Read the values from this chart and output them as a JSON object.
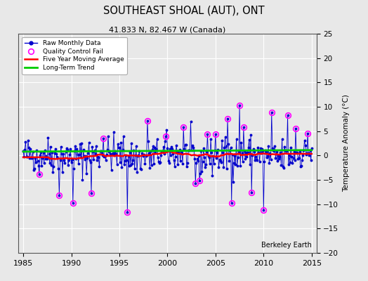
{
  "title": "SOUTHEAST SHOAL (AUT), ONT",
  "subtitle": "41.833 N, 82.467 W (Canada)",
  "ylabel": "Temperature Anomaly (°C)",
  "xlabel_note": "Berkeley Earth",
  "xlim": [
    1984.5,
    2015.5
  ],
  "ylim": [
    -20,
    25
  ],
  "yticks": [
    -20,
    -15,
    -10,
    -5,
    0,
    5,
    10,
    15,
    20,
    25
  ],
  "xticks": [
    1985,
    1990,
    1995,
    2000,
    2005,
    2010,
    2015
  ],
  "bg_color": "#e8e8e8",
  "grid_color": "#ffffff",
  "raw_color": "#0000cc",
  "qc_color": "#ff00ff",
  "moving_avg_color": "#ff0000",
  "trend_color": "#00cc00",
  "seed": 42
}
